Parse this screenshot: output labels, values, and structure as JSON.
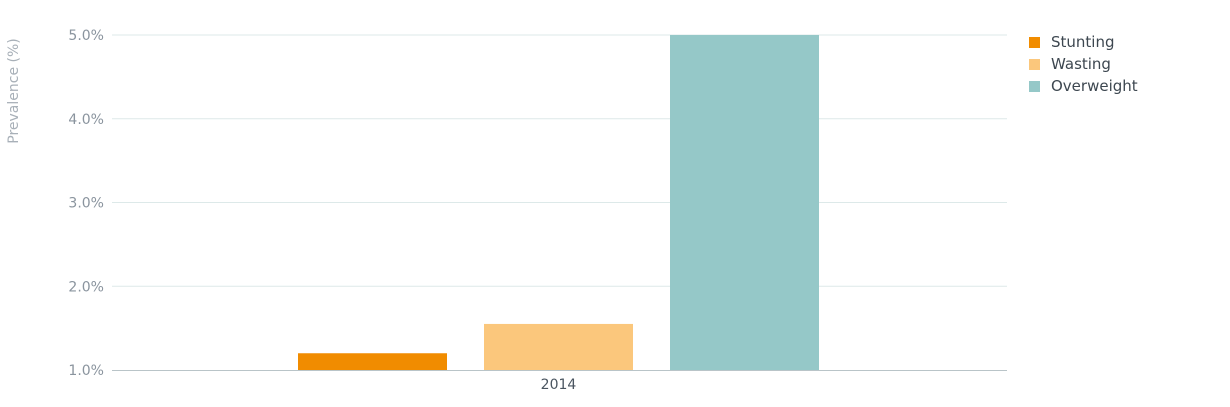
{
  "chart_data": {
    "type": "bar",
    "categories": [
      "2014"
    ],
    "series": [
      {
        "name": "Stunting",
        "values": [
          1.2
        ],
        "color": "#f18c00"
      },
      {
        "name": "Wasting",
        "values": [
          1.55
        ],
        "color": "#fbc77c"
      },
      {
        "name": "Overweight",
        "values": [
          5.0
        ],
        "color": "#95c8c8"
      }
    ],
    "title": "",
    "xlabel": "",
    "ylabel": "Prevalence (%)",
    "ylim": [
      1.0,
      5.0
    ],
    "yticks": [
      1.0,
      2.0,
      3.0,
      4.0,
      5.0
    ],
    "ytick_labels": [
      "1.0%",
      "2.0%",
      "3.0%",
      "4.0%",
      "5.0%"
    ],
    "grid": true,
    "legend_position": "top-right",
    "colors": {
      "grid": "#dde9e9",
      "axis": "#b9c4c8"
    }
  }
}
